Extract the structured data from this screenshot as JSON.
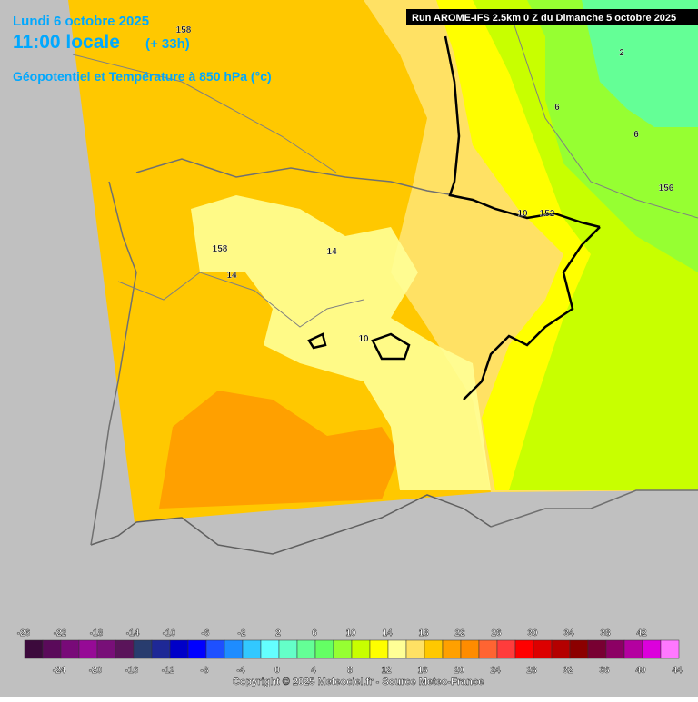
{
  "header": {
    "date": "Lundi 6 octobre 2025",
    "time": "11:00 locale",
    "lead": "(+ 33h)",
    "parameter": "Géopotentiel et Température à 850 hPa (°c)",
    "run": "Run AROME-IFS 2.5km 0 Z du Dimanche 5 octobre 2025"
  },
  "map": {
    "contour_labels": [
      "158",
      "158",
      "14",
      "14",
      "10",
      "10",
      "152",
      "156",
      "6",
      "6",
      "2"
    ]
  },
  "legend": {
    "labels": [
      -26,
      -24,
      -22,
      -20,
      -18,
      -16,
      -14,
      -12,
      -10,
      -8,
      -6,
      -4,
      -2,
      0,
      2,
      4,
      6,
      8,
      10,
      12,
      14,
      16,
      18,
      20,
      22,
      24,
      26,
      28,
      30,
      32,
      34,
      36,
      38,
      40,
      42,
      44
    ],
    "colors": [
      "#3c0a3c",
      "#5a0a5a",
      "#780a78",
      "#960a96",
      "#780f78",
      "#5a145a",
      "#283c6e",
      "#1e2896",
      "#0000c8",
      "#0000ff",
      "#1e50ff",
      "#1e8cff",
      "#32c8ff",
      "#64ffff",
      "#64ffc8",
      "#64ff96",
      "#64ff64",
      "#96ff32",
      "#c8ff00",
      "#ffff00",
      "#ffff96",
      "#ffe164",
      "#ffc800",
      "#ffa000",
      "#ff8c00",
      "#ff6432",
      "#ff3c3c",
      "#ff0000",
      "#dc0000",
      "#b40000",
      "#8c0000",
      "#780032",
      "#8c0064",
      "#b400a0",
      "#dc00dc",
      "#ff78ff"
    ]
  },
  "footer": {
    "copyright": "Copyright © 2025 Meteociel.fr - Source Meteo-France"
  }
}
